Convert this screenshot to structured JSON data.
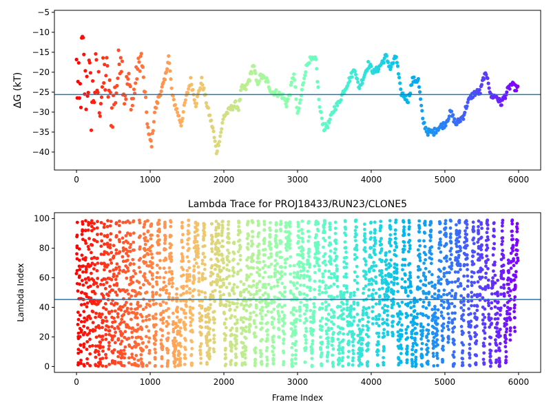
{
  "chart_data": [
    {
      "type": "scatter",
      "title": "",
      "xlabel": "",
      "ylabel": "ΔG (kT)",
      "xlim": [
        -300,
        6300
      ],
      "ylim": [
        -44.5,
        -4.5
      ],
      "xticks": [
        0,
        1000,
        2000,
        3000,
        4000,
        5000,
        6000
      ],
      "xtick_labels": [
        "0",
        "1000",
        "2000",
        "3000",
        "4000",
        "5000",
        "6000"
      ],
      "yticks": [
        -40,
        -35,
        -30,
        -25,
        -20,
        -15,
        -10,
        -5
      ],
      "ytick_labels": [
        "−40",
        "−35",
        "−30",
        "−25",
        "−20",
        "−15",
        "−10",
        "−5"
      ],
      "reference_line_y": -25.6,
      "reference_line_color": "#1f77b4",
      "colormap": "rainbow (red at start, violet at end)",
      "x_range": [
        0,
        5990
      ],
      "trace_keypoints": [
        [
          0,
          -20
        ],
        [
          40,
          -30
        ],
        [
          80,
          -15
        ],
        [
          120,
          -25
        ],
        [
          160,
          -20
        ],
        [
          200,
          -28
        ],
        [
          260,
          -22
        ],
        [
          320,
          -26
        ],
        [
          400,
          -20
        ],
        [
          480,
          -30
        ],
        [
          540,
          -24
        ],
        [
          600,
          -14
        ],
        [
          650,
          -26
        ],
        [
          700,
          -22
        ],
        [
          760,
          -28
        ],
        [
          820,
          -20
        ],
        [
          880,
          -16
        ],
        [
          920,
          -24
        ],
        [
          980,
          -36
        ],
        [
          1020,
          -38
        ],
        [
          1060,
          -30
        ],
        [
          1120,
          -26
        ],
        [
          1200,
          -22
        ],
        [
          1250,
          -16
        ],
        [
          1300,
          -26
        ],
        [
          1370,
          -30
        ],
        [
          1420,
          -33
        ],
        [
          1480,
          -27
        ],
        [
          1550,
          -22
        ],
        [
          1620,
          -28
        ],
        [
          1700,
          -22
        ],
        [
          1780,
          -29
        ],
        [
          1850,
          -34
        ],
        [
          1900,
          -40
        ],
        [
          1950,
          -36
        ],
        [
          2000,
          -31
        ],
        [
          2100,
          -29
        ],
        [
          2160,
          -28
        ],
        [
          2200,
          -29
        ],
        [
          2240,
          -24
        ],
        [
          2300,
          -24
        ],
        [
          2360,
          -21
        ],
        [
          2400,
          -18
        ],
        [
          2450,
          -23
        ],
        [
          2500,
          -21
        ],
        [
          2580,
          -22
        ],
        [
          2650,
          -25
        ],
        [
          2700,
          -25
        ],
        [
          2800,
          -26
        ],
        [
          2850,
          -28
        ],
        [
          2900,
          -25
        ],
        [
          2950,
          -20
        ],
        [
          3000,
          -31
        ],
        [
          3040,
          -27
        ],
        [
          3100,
          -20
        ],
        [
          3150,
          -17
        ],
        [
          3250,
          -17
        ],
        [
          3300,
          -29
        ],
        [
          3360,
          -34
        ],
        [
          3420,
          -33
        ],
        [
          3500,
          -29
        ],
        [
          3550,
          -28
        ],
        [
          3620,
          -25
        ],
        [
          3700,
          -22
        ],
        [
          3780,
          -19
        ],
        [
          3830,
          -24
        ],
        [
          3880,
          -22
        ],
        [
          3960,
          -18
        ],
        [
          4040,
          -20
        ],
        [
          4100,
          -19
        ],
        [
          4200,
          -16
        ],
        [
          4260,
          -19
        ],
        [
          4340,
          -16
        ],
        [
          4400,
          -25
        ],
        [
          4500,
          -27
        ],
        [
          4560,
          -22
        ],
        [
          4640,
          -22
        ],
        [
          4700,
          -32
        ],
        [
          4760,
          -35
        ],
        [
          4850,
          -35
        ],
        [
          4900,
          -34
        ],
        [
          5000,
          -33
        ],
        [
          5080,
          -30
        ],
        [
          5150,
          -33
        ],
        [
          5250,
          -31
        ],
        [
          5300,
          -28
        ],
        [
          5360,
          -26
        ],
        [
          5420,
          -25
        ],
        [
          5480,
          -25
        ],
        [
          5530,
          -21
        ],
        [
          5580,
          -21
        ],
        [
          5620,
          -26
        ],
        [
          5700,
          -26
        ],
        [
          5760,
          -28
        ],
        [
          5840,
          -25
        ],
        [
          5900,
          -23
        ],
        [
          5960,
          -24
        ]
      ]
    },
    {
      "type": "scatter",
      "title": "Lambda Trace for PROJ18433/RUN23/CLONE5",
      "xlabel": "Frame Index",
      "ylabel": "Lambda Index",
      "xlim": [
        -300,
        6300
      ],
      "ylim": [
        -4,
        104
      ],
      "xticks": [
        0,
        1000,
        2000,
        3000,
        4000,
        5000,
        6000
      ],
      "xtick_labels": [
        "0",
        "1000",
        "2000",
        "3000",
        "4000",
        "5000",
        "6000"
      ],
      "yticks": [
        0,
        20,
        40,
        60,
        80,
        100
      ],
      "ytick_labels": [
        "0",
        "20",
        "40",
        "60",
        "80",
        "100"
      ],
      "reference_line_y": 45.3,
      "reference_line_color": "#1f77b4",
      "colormap": "rainbow (red at start, violet at end)",
      "x_range": [
        0,
        5990
      ],
      "value_range": [
        0,
        99
      ],
      "pattern": "vertical bands of points sweeping the full 0–99 lambda range"
    }
  ]
}
